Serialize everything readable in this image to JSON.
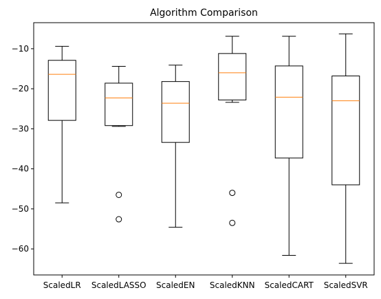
{
  "chart_data": {
    "type": "box",
    "title": "Algorithm Comparison",
    "xlabel": "",
    "ylabel": "",
    "ylim": [
      -66.5,
      -3.5
    ],
    "yticks": [
      -10,
      -20,
      -30,
      -40,
      -50,
      -60
    ],
    "ytick_labels": [
      "−10",
      "−20",
      "−30",
      "−40",
      "−50",
      "−60"
    ],
    "categories": [
      "ScaledLR",
      "ScaledLASSO",
      "ScaledEN",
      "ScaledKNN",
      "ScaledCART",
      "ScaledSVR"
    ],
    "boxes": [
      {
        "name": "ScaledLR",
        "whisker_low": -48.5,
        "q1": -27.9,
        "median": -16.4,
        "q3": -12.9,
        "whisker_high": -9.4,
        "outliers": []
      },
      {
        "name": "ScaledLASSO",
        "whisker_low": -29.4,
        "q1": -29.2,
        "median": -22.3,
        "q3": -18.6,
        "whisker_high": -14.4,
        "outliers": [
          -46.5,
          -52.6
        ]
      },
      {
        "name": "ScaledEN",
        "whisker_low": -54.6,
        "q1": -33.4,
        "median": -23.6,
        "q3": -18.2,
        "whisker_high": -14.1,
        "outliers": []
      },
      {
        "name": "ScaledKNN",
        "whisker_low": -23.4,
        "q1": -22.8,
        "median": -16.0,
        "q3": -11.2,
        "whisker_high": -6.9,
        "outliers": [
          -46.0,
          -53.5
        ]
      },
      {
        "name": "ScaledCART",
        "whisker_low": -61.6,
        "q1": -37.3,
        "median": -22.1,
        "q3": -14.3,
        "whisker_high": -6.9,
        "outliers": []
      },
      {
        "name": "ScaledSVR",
        "whisker_low": -63.6,
        "q1": -44.0,
        "median": -23.0,
        "q3": -16.8,
        "whisker_high": -6.3,
        "outliers": []
      }
    ],
    "colors": {
      "box": "#000000",
      "median": "#ff7f0e",
      "outlier_edge": "#000000"
    },
    "grid": false
  }
}
